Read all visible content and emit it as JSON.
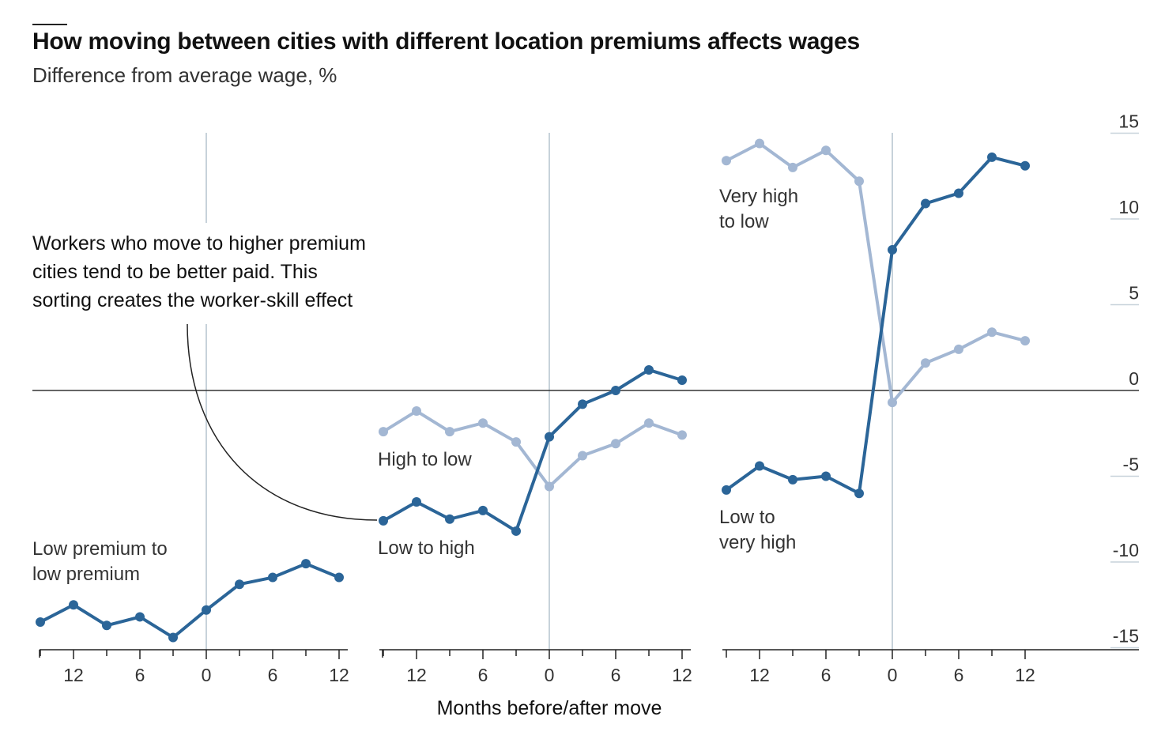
{
  "title": "How moving between cities with different location premiums affects wages",
  "subtitle": "Difference from average wage, %",
  "colors": {
    "dark": "#2b6598",
    "light": "#a3b7d3",
    "zero_line": "#333333",
    "divider": "#c7d2da",
    "axis": "#222222"
  },
  "chart_data": {
    "type": "line",
    "xlabel": "Months before/after move",
    "ylabel": "",
    "ylim": [
      -15,
      15
    ],
    "yticks": [
      15,
      10,
      5,
      0,
      -5,
      -10,
      -15
    ],
    "xticks": [
      12,
      6,
      0,
      6,
      12
    ],
    "x": [
      -15,
      -12,
      -9,
      -6,
      -3,
      0,
      3,
      6,
      9,
      12
    ],
    "annotation": "Workers who move to higher premium cities tend to be better paid. This sorting creates the worker-skill effect",
    "annotation_lines": [
      "Workers who move to higher premium",
      "cities tend to be better paid. This",
      "sorting creates the worker-skill effect"
    ],
    "panels": [
      {
        "series": [
          {
            "name": "Low premium to low premium",
            "label_lines": [
              "Low premium to",
              "low premium"
            ],
            "color": "dark",
            "values": [
              -13.5,
              -12.5,
              -13.7,
              -13.2,
              -14.4,
              -12.8,
              -11.3,
              -10.9,
              -10.1,
              -10.9
            ]
          }
        ]
      },
      {
        "series": [
          {
            "name": "High to low",
            "label_lines": [
              "High to low"
            ],
            "color": "light",
            "values": [
              -2.4,
              -1.2,
              -2.4,
              -1.9,
              -3.0,
              -5.6,
              -3.8,
              -3.1,
              -1.9,
              -2.6
            ]
          },
          {
            "name": "Low to high",
            "label_lines": [
              "Low to high"
            ],
            "color": "dark",
            "values": [
              -7.6,
              -6.5,
              -7.5,
              -7.0,
              -8.2,
              -2.7,
              -0.8,
              0.0,
              1.2,
              0.6
            ]
          }
        ]
      },
      {
        "series": [
          {
            "name": "Very high to low",
            "label_lines": [
              "Very high",
              "to low"
            ],
            "color": "light",
            "values": [
              13.4,
              14.4,
              13.0,
              14.0,
              12.2,
              -0.7,
              1.6,
              2.4,
              3.4,
              2.9
            ]
          },
          {
            "name": "Low to very high",
            "label_lines": [
              "Low to",
              "very high"
            ],
            "color": "dark",
            "values": [
              -5.8,
              -4.4,
              -5.2,
              -5.0,
              -6.0,
              8.2,
              10.9,
              11.5,
              13.6,
              13.1
            ]
          }
        ]
      }
    ]
  }
}
